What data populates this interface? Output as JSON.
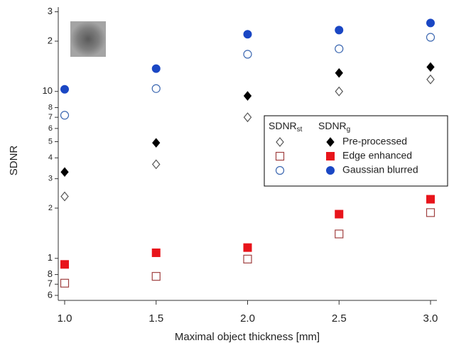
{
  "chart_data": {
    "type": "scatter",
    "x_label": "Maximal object thickness [mm]",
    "y_label": "SDNR",
    "log_y": true,
    "xlim": [
      0.965,
      3.035
    ],
    "ylim": [
      0.56,
      32
    ],
    "xticks": [
      {
        "value": 1,
        "label": "1.0"
      },
      {
        "value": 1.5,
        "label": "1.5"
      },
      {
        "value": 2,
        "label": "2.0"
      },
      {
        "value": 2.5,
        "label": "2.5"
      },
      {
        "value": 3,
        "label": "3.0"
      }
    ],
    "yticks": [
      {
        "value": 0.6,
        "label": "6"
      },
      {
        "value": 0.7,
        "label": "7"
      },
      {
        "value": 0.8,
        "label": "8"
      },
      1,
      2,
      3,
      4,
      5,
      6,
      7,
      8,
      10,
      {
        "value": 20,
        "label": "2"
      },
      {
        "value": 30,
        "label": "3"
      }
    ],
    "x": [
      1,
      1.5,
      2,
      2.5,
      3
    ],
    "legend_headers": [
      {
        "text": "SDNR",
        "sub": "st"
      },
      {
        "text": "SDNR",
        "sub": "g"
      }
    ],
    "series": [
      {
        "name": "Pre-processed",
        "marker": "diamond",
        "color": "#000000",
        "open_color": "#555555",
        "open_values": [
          2.35,
          3.66,
          7.0,
          10.0,
          11.8
        ],
        "filled_values": [
          3.29,
          4.92,
          9.4,
          12.9,
          14.0
        ]
      },
      {
        "name": "Edge enhanced",
        "marker": "square",
        "color": "#e8141b",
        "open_color": "#a04040",
        "open_values": [
          0.71,
          0.78,
          0.99,
          1.4,
          1.88
        ],
        "filled_values": [
          0.92,
          1.08,
          1.16,
          1.84,
          2.26
        ]
      },
      {
        "name": "Gaussian blurred",
        "marker": "circle",
        "color": "#1a47c4",
        "open_color": "#3a66b0",
        "open_values": [
          7.2,
          10.4,
          16.7,
          18.0,
          21.1
        ],
        "filled_values": [
          10.3,
          13.7,
          22.0,
          23.3,
          25.7
        ]
      }
    ]
  }
}
